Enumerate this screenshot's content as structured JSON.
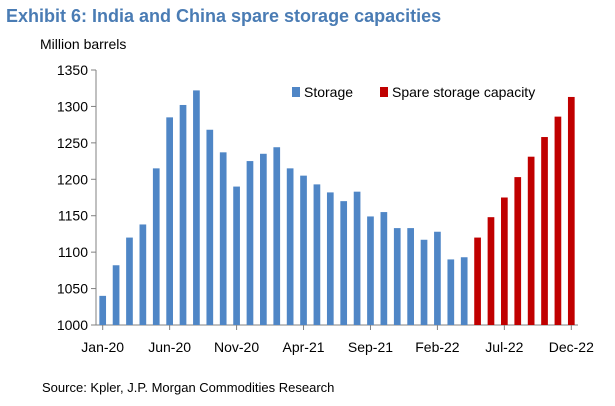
{
  "title": "Exhibit 6: India and China spare storage capacities",
  "source": "Source: Kpler, J.P. Morgan Commodities Research",
  "colors": {
    "storage": "#4f86c6",
    "spare": "#c00000",
    "title": "#4a7cb4"
  },
  "chart_data": {
    "type": "bar",
    "title": "Exhibit 6: India and China spare storage capacities",
    "ylabel": "Million barrels",
    "xlabel": "",
    "ylim": [
      1000,
      1350
    ],
    "yticks": [
      1000,
      1050,
      1100,
      1150,
      1200,
      1250,
      1300,
      1350
    ],
    "grid": false,
    "legend": "top-right",
    "x_tick_labels": [
      "Jan-20",
      "Jun-20",
      "Nov-20",
      "Apr-21",
      "Sep-21",
      "Feb-22",
      "Jul-22",
      "Dec-22"
    ],
    "categories": [
      "Jan-20",
      "Feb-20",
      "Mar-20",
      "Apr-20",
      "May-20",
      "Jun-20",
      "Jul-20",
      "Aug-20",
      "Sep-20",
      "Oct-20",
      "Nov-20",
      "Dec-20",
      "Jan-21",
      "Feb-21",
      "Mar-21",
      "Apr-21",
      "May-21",
      "Jun-21",
      "Jul-21",
      "Aug-21",
      "Sep-21",
      "Oct-21",
      "Nov-21",
      "Dec-21",
      "Jan-22",
      "Feb-22",
      "Mar-22",
      "Apr-22",
      "May-22",
      "Jun-22",
      "Jul-22",
      "Aug-22",
      "Sep-22",
      "Oct-22",
      "Nov-22",
      "Dec-22"
    ],
    "series": [
      {
        "name": "Storage",
        "values": [
          1040,
          1082,
          1120,
          1138,
          1215,
          1285,
          1302,
          1322,
          1268,
          1237,
          1190,
          1225,
          1235,
          1244,
          1215,
          1205,
          1193,
          1182,
          1170,
          1183,
          1149,
          1155,
          1133,
          1133,
          1117,
          1128,
          1090,
          1093,
          null,
          null,
          null,
          null,
          null,
          null,
          null,
          null
        ]
      },
      {
        "name": "Spare storage capacity",
        "values": [
          null,
          null,
          null,
          null,
          null,
          null,
          null,
          null,
          null,
          null,
          null,
          null,
          null,
          null,
          null,
          null,
          null,
          null,
          null,
          null,
          null,
          null,
          null,
          null,
          null,
          null,
          null,
          null,
          1120,
          1148,
          1175,
          1203,
          1231,
          1258,
          1286,
          1313
        ]
      }
    ]
  }
}
